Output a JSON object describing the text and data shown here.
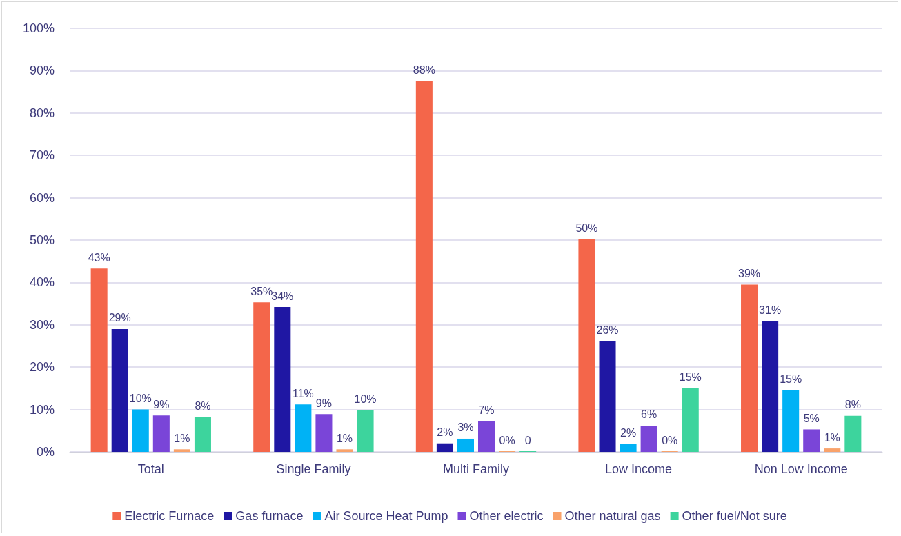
{
  "chart_data": {
    "type": "bar",
    "categories": [
      "Total",
      "Single Family",
      "Multi Family",
      "Low Income",
      "Non Low Income"
    ],
    "series": [
      {
        "name": "Electric Furnace",
        "color": "#f4664a",
        "values": [
          43.3,
          35.3,
          87.5,
          50.3,
          39.5
        ],
        "value_labels": [
          "43%",
          "35%",
          "88%",
          "50%",
          "39%"
        ]
      },
      {
        "name": "Gas furnace",
        "color": "#1f17a3",
        "values": [
          29,
          34.2,
          2,
          26.1,
          30.8
        ],
        "value_labels": [
          "29%",
          "34%",
          "2%",
          "26%",
          "31%"
        ]
      },
      {
        "name": "Air Source Heat Pump",
        "color": "#00b2f5",
        "values": [
          10,
          11.2,
          3.1,
          1.8,
          14.6
        ],
        "value_labels": [
          "10%",
          "11%",
          "3%",
          "2%",
          "15%"
        ]
      },
      {
        "name": "Other electric",
        "color": "#7a45d8",
        "values": [
          8.6,
          8.9,
          7.3,
          6.2,
          5.3
        ],
        "value_labels": [
          "9%",
          "9%",
          "7%",
          "6%",
          "5%"
        ]
      },
      {
        "name": "Other natural gas",
        "color": "#f9a26a",
        "values": [
          0.6,
          0.6,
          0,
          0,
          0.8
        ],
        "value_labels": [
          "1%",
          "1%",
          "0%",
          "0%",
          "1%"
        ]
      },
      {
        "name": "Other fuel/Not sure",
        "color": "#3dd49d",
        "values": [
          8.3,
          9.8,
          0,
          15,
          8.5
        ],
        "value_labels": [
          "8%",
          "10%",
          "0",
          "15%",
          "8%"
        ]
      }
    ],
    "ylim": [
      0,
      100
    ],
    "yticks": [
      {
        "value": 0,
        "label": "0%"
      },
      {
        "value": 10,
        "label": "10%"
      },
      {
        "value": 20,
        "label": "20%"
      },
      {
        "value": 30,
        "label": "30%"
      },
      {
        "value": 40,
        "label": "40%"
      },
      {
        "value": 50,
        "label": "50%"
      },
      {
        "value": 60,
        "label": "60%"
      },
      {
        "value": 70,
        "label": "70%"
      },
      {
        "value": 80,
        "label": "80%"
      },
      {
        "value": 90,
        "label": "90%"
      },
      {
        "value": 100,
        "label": "100%"
      }
    ],
    "grid": "y",
    "legend": "bottom"
  }
}
